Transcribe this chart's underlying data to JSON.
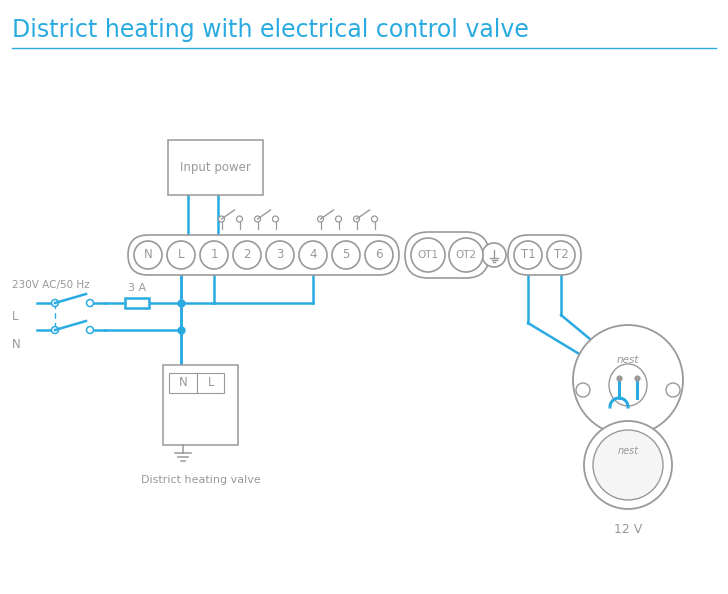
{
  "title": "District heating with electrical control valve",
  "title_color": "#29abe2",
  "title_fontsize": 17,
  "bg_color": "#ffffff",
  "line_color": "#29abe2",
  "gray_color": "#999999",
  "wire_lw": 1.8,
  "term_lw": 1.2,
  "label_230v": "230V AC/50 Hz",
  "label_L": "L",
  "label_N": "N",
  "label_3A": "3 A",
  "label_valve": "District heating valve",
  "label_12v": "12 V",
  "label_input": "Input power",
  "label_nest": "nest"
}
